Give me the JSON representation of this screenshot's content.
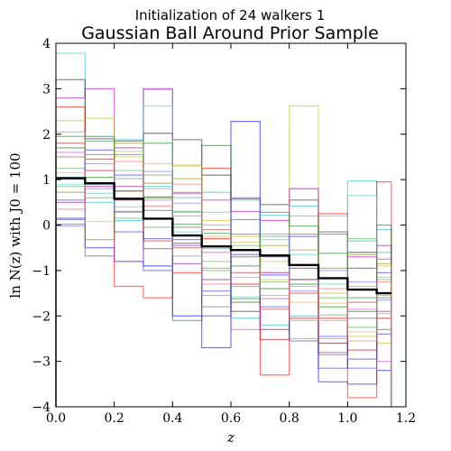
{
  "chart_data": {
    "type": "line",
    "step": true,
    "suptitle": "Initialization of 24 walkers 1",
    "title": "Gaussian Ball Around Prior Sample",
    "xlabel": "z",
    "ylabel": "ln N(z) with J0 = 100",
    "xlim": [
      0.0,
      1.2
    ],
    "ylim": [
      -4,
      4
    ],
    "x_ticks": [
      "0.0",
      "0.2",
      "0.4",
      "0.6",
      "0.8",
      "1.0",
      "1.2"
    ],
    "y_ticks": [
      "4",
      "3",
      "2",
      "1",
      "0",
      "−1",
      "−2",
      "−3",
      "−4"
    ],
    "bin_edges": [
      0.0,
      0.1,
      0.2,
      0.3,
      0.4,
      0.5,
      0.6,
      0.7,
      0.8,
      0.9,
      1.0,
      1.1,
      1.15
    ],
    "grid": false,
    "legend": false,
    "series": [
      {
        "color": "#000000",
        "bold": true,
        "values": [
          1.03,
          0.92,
          0.58,
          0.14,
          -0.23,
          -0.47,
          -0.55,
          -0.67,
          -0.88,
          -1.17,
          -1.42,
          -1.5
        ]
      },
      {
        "color": "#1fbfbf",
        "values": [
          3.78,
          1.95,
          1.88,
          2.98,
          0.6,
          0.72,
          0.55,
          0.22,
          0.42,
          0.2,
          0.97,
          -0.1
        ]
      },
      {
        "color": "#bf00bf",
        "values": [
          2.8,
          3.0,
          1.7,
          3.0,
          0.7,
          0.55,
          0.3,
          0.1,
          0.8,
          -0.2,
          -0.7,
          -1.9
        ]
      },
      {
        "color": "#202020",
        "values": [
          3.2,
          1.9,
          1.85,
          2.02,
          1.88,
          1.1,
          0.58,
          0.45,
          0.55,
          -0.15,
          -0.6,
          -1.5
        ]
      },
      {
        "color": "#0000ff",
        "values": [
          0.15,
          -0.5,
          -0.8,
          -0.9,
          -2.0,
          -2.7,
          2.28,
          -1.1,
          -1.2,
          -3.45,
          -3.5,
          -3.2
        ]
      },
      {
        "color": "#bfbf00",
        "values": [
          2.3,
          2.35,
          1.5,
          1.35,
          1.3,
          0.1,
          -0.25,
          -1.2,
          2.62,
          -1.5,
          -2.45,
          -2.6
        ]
      },
      {
        "color": "#ff0000",
        "values": [
          2.6,
          1.45,
          -1.35,
          -1.6,
          -1.05,
          1.25,
          -0.2,
          -3.3,
          -2.05,
          0.25,
          -3.8,
          0.95
        ]
      },
      {
        "color": "#008000",
        "values": [
          1.7,
          1.05,
          0.75,
          1.8,
          -2.1,
          1.75,
          -1.7,
          -1.4,
          -1.3,
          -1.8,
          -1.9,
          0.0
        ]
      },
      {
        "color": "#00bfbf",
        "values": [
          1.05,
          0.5,
          0.1,
          0.85,
          0.28,
          -0.52,
          -2.05,
          -2.2,
          -2.0,
          -2.6,
          -0.35,
          -0.6
        ]
      },
      {
        "color": "#800080",
        "values": [
          0.5,
          0.85,
          0.85,
          0.6,
          -0.85,
          -1.2,
          -1.9,
          -2.3,
          -0.95,
          -2.85,
          -0.95,
          -0.45
        ]
      },
      {
        "color": "#606060",
        "values": [
          0.02,
          -0.68,
          0.3,
          0.32,
          -0.05,
          -1.8,
          -0.7,
          -0.7,
          -0.2,
          -2.8,
          -2.05,
          -1.6
        ]
      },
      {
        "color": "#cc0000",
        "values": [
          1.8,
          1.2,
          0.55,
          -0.52,
          -0.4,
          -0.3,
          -1.3,
          -2.52,
          -1.5,
          -2.05,
          -2.75,
          -2.05
        ]
      },
      {
        "color": "#4cb04c",
        "values": [
          0.85,
          0.6,
          0.15,
          -0.05,
          0.72,
          -1.0,
          -0.45,
          -0.25,
          -2.5,
          -1.6,
          -2.25,
          -1.2
        ]
      },
      {
        "color": "#3333ff",
        "values": [
          0.12,
          1.65,
          1.1,
          -1.0,
          -0.32,
          -1.45,
          0.12,
          -1.05,
          -0.25,
          -2.45,
          -3.15,
          -1.05
        ]
      },
      {
        "color": "#d4b84c",
        "values": [
          1.15,
          0.08,
          1.62,
          0.6,
          1.32,
          -0.25,
          -0.38,
          -0.8,
          -1.7,
          -1.72,
          -2.35,
          -0.9
        ]
      },
      {
        "color": "#cc4ccc",
        "values": [
          1.6,
          0.8,
          -0.8,
          0.55,
          0.2,
          -0.6,
          -2.3,
          -1.62,
          0.8,
          -2.5,
          -1.85,
          -3.0
        ]
      },
      {
        "color": "#4ccccc",
        "values": [
          0.9,
          0.7,
          0.4,
          2.62,
          -0.15,
          0.28,
          -1.58,
          -0.32,
          -0.65,
          -1.3,
          0.65,
          -1.15
        ]
      },
      {
        "color": "#55aa55",
        "values": [
          1.25,
          1.95,
          1.2,
          1.1,
          0.3,
          -0.8,
          -0.9,
          -1.25,
          0.2,
          -1.98,
          -0.3,
          -1.55
        ]
      },
      {
        "color": "#bf3333",
        "values": [
          1.5,
          1.55,
          0.75,
          -0.35,
          -0.5,
          -0.1,
          -1.05,
          -1.85,
          -1.2,
          -2.6,
          -1.7,
          -0.75
        ]
      },
      {
        "color": "#3333bf",
        "values": [
          0.55,
          0.9,
          -0.15,
          -0.3,
          -0.45,
          -2.0,
          -0.65,
          -1.8,
          -2.55,
          -3.15,
          -2.95,
          -2.4
        ]
      },
      {
        "color": "#228b22",
        "values": [
          1.95,
          1.85,
          1.55,
          0.62,
          0.02,
          -0.18,
          -1.62,
          0.28,
          -0.02,
          -0.62,
          -1.6,
          -2.3
        ]
      },
      {
        "color": "#8b8b00",
        "values": [
          0.72,
          -0.32,
          1.8,
          0.92,
          1.02,
          -0.95,
          -1.35,
          -0.45,
          -0.55,
          -0.95,
          -0.65,
          -0.85
        ]
      },
      {
        "color": "#7070ff",
        "values": [
          -0.02,
          1.35,
          0.28,
          1.18,
          0.48,
          -1.55,
          0.6,
          -0.2,
          -1.45,
          -1.0,
          -1.25,
          -1.65
        ]
      },
      {
        "color": "#909090",
        "values": [
          2.05,
          1.45,
          1.02,
          0.8,
          -0.68,
          0.0,
          -0.9,
          -1.55,
          -1.35,
          -2.1,
          -1.35,
          -1.95
        ]
      },
      {
        "color": "#ff6666",
        "values": [
          0.35,
          1.2,
          1.4,
          0.42,
          0.9,
          -1.3,
          -1.15,
          -1.05,
          -2.1,
          -1.4,
          -2.55,
          -1.25
        ]
      }
    ]
  }
}
